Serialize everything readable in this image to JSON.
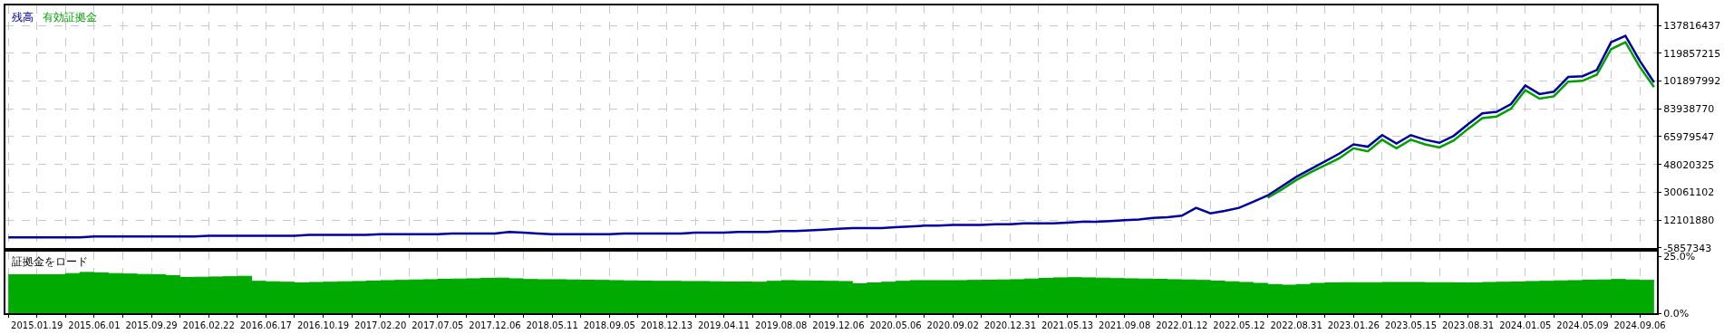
{
  "chart_data": [
    {
      "type": "line",
      "legend": "top left",
      "grid": true,
      "marker": "none",
      "line_style": "solid",
      "tick_labels": "y",
      "categories": [
        null,
        null,
        "2015.01.19",
        null,
        null,
        null,
        "2015.06.01",
        null,
        null,
        null,
        "2015.09.29",
        null,
        null,
        null,
        "2016.02.22",
        null,
        null,
        null,
        "2016.06.17",
        null,
        null,
        null,
        "2016.10.19",
        null,
        null,
        null,
        "2017.02.20",
        null,
        null,
        null,
        "2017.07.05",
        null,
        null,
        null,
        "2017.12.06",
        null,
        null,
        null,
        "2018.05.11",
        null,
        null,
        null,
        "2018.09.05",
        null,
        null,
        null,
        "2018.12.13",
        null,
        null,
        null,
        "2019.04.11",
        null,
        null,
        null,
        "2019.08.08",
        null,
        null,
        null,
        "2019.12.06",
        null,
        null,
        null,
        "2020.05.06",
        null,
        null,
        null,
        "2020.09.02",
        null,
        null,
        null,
        "2020.12.31",
        null,
        null,
        null,
        "2021.05.13",
        null,
        null,
        null,
        "2021.09.08",
        null,
        null,
        null,
        "2022.01.12",
        null,
        null,
        null,
        "2022.05.12",
        null,
        null,
        null,
        "2022.08.31",
        null,
        null,
        null,
        "2023.01.26",
        null,
        null,
        null,
        "2023.05.15",
        null,
        null,
        null,
        "2023.08.31",
        null,
        null,
        null,
        "2024.01.05",
        null,
        null,
        null,
        "2024.05.09",
        null,
        null,
        null,
        "2024.09.06",
        null
      ],
      "series": [
        {
          "name": "残高",
          "color": "#0000a0",
          "values": [
            1000000,
            1000000,
            1000000,
            1000000,
            1000000,
            1000000,
            1500000,
            1500000,
            1500000,
            1500000,
            1500000,
            1500000,
            1500000,
            1500000,
            2000000,
            2000000,
            2000000,
            2000000,
            2000000,
            2000000,
            2000000,
            2500000,
            2500000,
            2500000,
            2500000,
            2500000,
            3000000,
            3000000,
            3000000,
            3000000,
            3000000,
            3500000,
            3500000,
            3500000,
            3500000,
            4500000,
            4000000,
            3500000,
            3000000,
            3000000,
            3000000,
            3000000,
            3000000,
            3500000,
            3500000,
            3500000,
            3500000,
            3500000,
            4000000,
            4000000,
            4000000,
            4500000,
            4500000,
            4500000,
            5000000,
            5000000,
            5500000,
            6000000,
            6500000,
            7000000,
            7000000,
            7000000,
            7500000,
            8000000,
            8500000,
            8500000,
            9000000,
            9000000,
            9000000,
            9500000,
            9500000,
            10000000,
            10000000,
            10000000,
            10500000,
            11000000,
            11000000,
            11500000,
            12000000,
            12500000,
            13500000,
            14000000,
            15000000,
            20000000,
            16500000,
            18000000,
            20000000,
            24000000,
            28000000,
            34000000,
            40000000,
            45000000,
            50000000,
            55000000,
            61000000,
            59500000,
            67000000,
            61500000,
            67000000,
            64000000,
            62000000,
            66500000,
            74000000,
            81000000,
            82000000,
            87000000,
            99000000,
            93500000,
            95000000,
            104500000,
            105000000,
            109000000,
            127000000,
            131000000,
            115000000,
            101000000
          ]
        },
        {
          "name": "有効証拠金",
          "color": "#00a000",
          "values": [
            null,
            null,
            null,
            null,
            null,
            null,
            null,
            null,
            null,
            null,
            null,
            null,
            null,
            null,
            null,
            null,
            null,
            null,
            null,
            null,
            null,
            null,
            null,
            null,
            null,
            null,
            null,
            null,
            null,
            null,
            null,
            null,
            null,
            null,
            null,
            null,
            null,
            null,
            null,
            null,
            null,
            null,
            null,
            null,
            null,
            null,
            null,
            null,
            null,
            null,
            null,
            null,
            null,
            null,
            null,
            null,
            null,
            null,
            null,
            null,
            null,
            null,
            null,
            null,
            null,
            null,
            null,
            null,
            null,
            null,
            null,
            null,
            null,
            null,
            null,
            null,
            null,
            null,
            null,
            null,
            null,
            null,
            null,
            null,
            null,
            null,
            null,
            null,
            26500000,
            32000000,
            38000000,
            43000000,
            47500000,
            52000000,
            58500000,
            56500000,
            64000000,
            58500000,
            64000000,
            61000000,
            59000000,
            63500000,
            71000000,
            78000000,
            79000000,
            84000000,
            96000000,
            90500000,
            92000000,
            101500000,
            102000000,
            106000000,
            122500000,
            127000000,
            111000000,
            98000000
          ]
        }
      ],
      "ylim": [
        -5857343,
        150700000
      ],
      "yticks": [
        -5857343,
        12101880,
        30061102,
        48020325,
        65979547,
        83938770,
        101897992,
        119857215,
        137816437
      ]
    },
    {
      "type": "area",
      "title": "証拠金をロード",
      "grid": "x",
      "categories": [
        null,
        null,
        "2015.01.19",
        null,
        null,
        null,
        "2015.06.01",
        null,
        null,
        null,
        "2015.09.29",
        null,
        null,
        null,
        "2016.02.22",
        null,
        null,
        null,
        "2016.06.17",
        null,
        null,
        null,
        "2016.10.19",
        null,
        null,
        null,
        "2017.02.20",
        null,
        null,
        null,
        "2017.07.05",
        null,
        null,
        null,
        "2017.12.06",
        null,
        null,
        null,
        "2018.05.11",
        null,
        null,
        null,
        "2018.09.05",
        null,
        null,
        null,
        "2018.12.13",
        null,
        null,
        null,
        "2019.04.11",
        null,
        null,
        null,
        "2019.08.08",
        null,
        null,
        null,
        "2019.12.06",
        null,
        null,
        null,
        "2020.05.06",
        null,
        null,
        null,
        "2020.09.02",
        null,
        null,
        null,
        "2020.12.31",
        null,
        null,
        null,
        "2021.05.13",
        null,
        null,
        null,
        "2021.09.08",
        null,
        null,
        null,
        "2022.01.12",
        null,
        null,
        null,
        "2022.05.12",
        null,
        null,
        null,
        "2022.08.31",
        null,
        null,
        null,
        "2023.01.26",
        null,
        null,
        null,
        "2023.05.15",
        null,
        null,
        null,
        "2023.08.31",
        null,
        null,
        null,
        "2024.01.05",
        null,
        null,
        null,
        "2024.05.09",
        null,
        null,
        null,
        "2024.09.06",
        null
      ],
      "series": [
        {
          "color": "#00aa00",
          "values": [
            16.9,
            16.9,
            16.9,
            16.9,
            17.4,
            17.9,
            17.7,
            17.4,
            17.2,
            17.0,
            16.9,
            16.5,
            15.7,
            15.8,
            15.9,
            16.0,
            16.2,
            14.0,
            13.8,
            13.6,
            13.3,
            13.5,
            13.6,
            13.8,
            13.9,
            14.1,
            14.3,
            14.4,
            14.6,
            14.7,
            14.9,
            15.0,
            15.1,
            15.3,
            15.4,
            15.1,
            14.8,
            14.7,
            14.7,
            14.6,
            14.5,
            14.4,
            14.3,
            14.2,
            14.1,
            14.0,
            14.0,
            13.9,
            13.9,
            13.8,
            13.7,
            13.7,
            13.6,
            14.0,
            14.3,
            14.2,
            14.1,
            14.0,
            13.9,
            12.9,
            13.3,
            13.6,
            14.0,
            14.3,
            14.3,
            14.3,
            14.3,
            14.4,
            14.5,
            14.6,
            14.7,
            15.0,
            15.3,
            15.5,
            15.6,
            15.5,
            15.4,
            15.2,
            15.1,
            15.0,
            14.9,
            14.7,
            14.6,
            14.4,
            14.1,
            13.8,
            13.5,
            13.1,
            12.6,
            12.3,
            12.6,
            13.1,
            13.3,
            13.4,
            13.4,
            13.4,
            13.5,
            13.5,
            13.5,
            13.4,
            13.4,
            13.3,
            13.3,
            13.5,
            13.6,
            13.7,
            13.9,
            14.0,
            14.2,
            14.3,
            14.5,
            14.6,
            14.8,
            14.6,
            14.4,
            14.0
          ]
        }
      ],
      "ylim": [
        0,
        27
      ],
      "yticks": [
        {
          "value": 0,
          "label": "0.0%"
        },
        {
          "value": 25,
          "label": "25.0%"
        }
      ]
    }
  ]
}
